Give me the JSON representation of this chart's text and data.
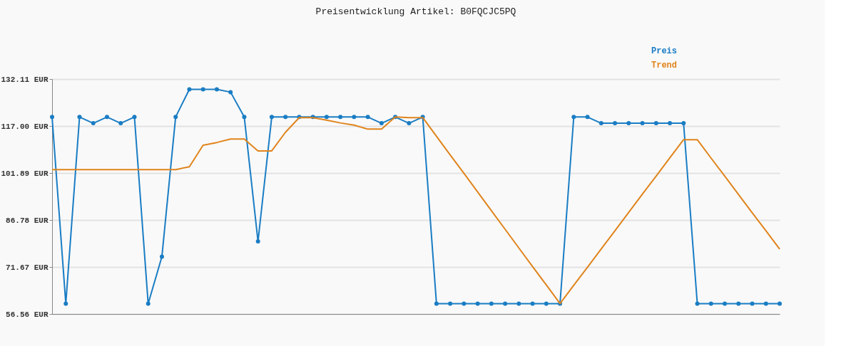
{
  "chart_data": {
    "type": "line",
    "title": "Preisentwicklung Artikel: B0FQCJC5PQ",
    "categories": [
      null,
      null,
      null,
      null,
      null,
      null,
      null,
      null,
      null,
      null,
      null,
      null,
      null,
      null,
      null,
      null,
      null,
      null,
      null,
      null,
      null,
      null,
      null,
      null,
      null,
      null,
      null,
      null,
      null,
      null,
      null,
      null,
      null,
      null,
      null,
      null,
      null,
      null,
      null,
      null,
      null,
      null,
      null,
      null,
      null,
      null,
      null,
      null,
      null,
      null,
      null,
      null,
      null,
      null
    ],
    "series": [
      {
        "name": "Preis",
        "color": "#1a7dc4",
        "marker": "circle",
        "values": [
          119.9,
          59.9,
          119.9,
          117.9,
          119.9,
          117.9,
          119.9,
          59.9,
          75.0,
          119.9,
          128.8,
          128.8,
          128.8,
          127.9,
          119.9,
          79.9,
          119.9,
          119.9,
          119.9,
          119.9,
          119.9,
          119.9,
          119.9,
          119.9,
          117.9,
          119.9,
          117.9,
          119.9,
          59.9,
          59.9,
          59.9,
          59.9,
          59.9,
          59.9,
          59.9,
          59.9,
          59.9,
          59.9,
          119.9,
          119.9,
          117.9,
          117.9,
          117.9,
          117.9,
          117.9,
          117.9,
          117.9,
          59.9,
          59.9,
          59.9,
          59.9,
          59.9,
          59.9,
          59.9
        ]
      },
      {
        "name": "Trend",
        "color": "#e0841c",
        "marker": "none",
        "values": [
          103.0,
          103.0,
          103.0,
          103.0,
          103.0,
          103.0,
          103.0,
          103.0,
          103.0,
          103.0,
          103.9,
          110.8,
          111.7,
          112.8,
          112.8,
          109.0,
          109.0,
          115.0,
          119.7,
          119.7,
          118.9,
          118.0,
          117.3,
          116.0,
          116.0,
          119.9,
          119.7,
          119.7,
          113.7,
          107.7,
          101.8,
          95.8,
          89.8,
          83.8,
          77.8,
          71.8,
          65.9,
          59.9,
          65.8,
          71.6,
          77.5,
          83.3,
          89.2,
          95.1,
          100.9,
          106.8,
          112.6,
          112.6,
          106.7,
          100.9,
          95.0,
          89.1,
          83.3,
          77.4
        ]
      }
    ],
    "ylim": [
      56.56,
      132.11
    ],
    "yticks": [
      {
        "value": 56.56,
        "label": "56.56 EUR"
      },
      {
        "value": 71.67,
        "label": "71.67 EUR"
      },
      {
        "value": 86.78,
        "label": "86.78 EUR"
      },
      {
        "value": 101.89,
        "label": "101.89 EUR"
      },
      {
        "value": 117.0,
        "label": "117.00 EUR"
      },
      {
        "value": 132.11,
        "label": "132.11 EUR"
      }
    ],
    "grid": "y",
    "legend": "top right",
    "tick_labels": "y",
    "line_style": "solid"
  }
}
